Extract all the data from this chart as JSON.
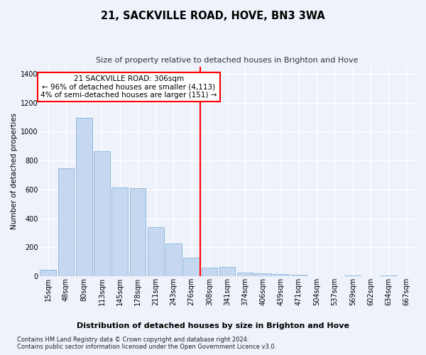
{
  "title": "21, SACKVILLE ROAD, HOVE, BN3 3WA",
  "subtitle": "Size of property relative to detached houses in Brighton and Hove",
  "xlabel": "Distribution of detached houses by size in Brighton and Hove",
  "ylabel": "Number of detached properties",
  "categories": [
    "15sqm",
    "48sqm",
    "80sqm",
    "113sqm",
    "145sqm",
    "178sqm",
    "211sqm",
    "243sqm",
    "276sqm",
    "308sqm",
    "341sqm",
    "374sqm",
    "406sqm",
    "439sqm",
    "471sqm",
    "504sqm",
    "537sqm",
    "569sqm",
    "602sqm",
    "634sqm",
    "667sqm"
  ],
  "values": [
    45,
    748,
    1095,
    865,
    612,
    610,
    340,
    225,
    130,
    60,
    65,
    25,
    20,
    15,
    10,
    0,
    0,
    8,
    0,
    5,
    0
  ],
  "bar_color": "#c5d8f0",
  "bar_edge_color": "#8ab4d8",
  "vline_index": 9,
  "vline_color": "red",
  "annotation_title": "21 SACKVILLE ROAD: 306sqm",
  "annotation_line1": "← 96% of detached houses are smaller (4,113)",
  "annotation_line2": "4% of semi-detached houses are larger (151) →",
  "annotation_box_color": "white",
  "annotation_box_edge_color": "red",
  "ylim": [
    0,
    1450
  ],
  "yticks": [
    0,
    200,
    400,
    600,
    800,
    1000,
    1200,
    1400
  ],
  "footnote1": "Contains HM Land Registry data © Crown copyright and database right 2024.",
  "footnote2": "Contains public sector information licensed under the Open Government Licence v3.0.",
  "background_color": "#eef2fa",
  "grid_color": "white",
  "title_fontsize": 10.5,
  "subtitle_fontsize": 8,
  "ylabel_fontsize": 7.5,
  "tick_fontsize": 7,
  "annotation_fontsize": 7.5,
  "xlabel_fontsize": 8,
  "footnote_fontsize": 6
}
